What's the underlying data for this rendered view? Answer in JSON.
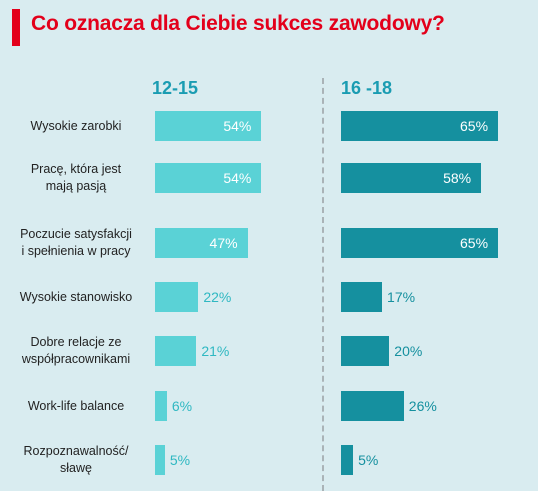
{
  "title": "Co oznacza dla Ciebie sukces zawodowy?",
  "chart_data": {
    "type": "bar",
    "orientation": "horizontal",
    "title": "Co oznacza dla Ciebie sukces zawodowy?",
    "categories": [
      "Wysokie zarobki",
      "Pracę, która jest mają pasją",
      "Poczucie satysfakcji i spełnienia w pracy",
      "Wysokie stanowisko",
      "Dobre relacje ze współpracownikami",
      "Work-life balance",
      "Rozpoznawalność/ sławę"
    ],
    "category_lines": [
      [
        "Wysokie zarobki"
      ],
      [
        "Pracę, która jest",
        "mają pasją"
      ],
      [
        "Poczucie satysfakcji",
        "i spełnienia w pracy"
      ],
      [
        "Wysokie stanowisko"
      ],
      [
        "Dobre relacje ze",
        "współpracownikami"
      ],
      [
        "Work-life balance"
      ],
      [
        "Rozpoznawalność/",
        "sławę"
      ]
    ],
    "series": [
      {
        "name": "12-15",
        "values": [
          54,
          54,
          47,
          22,
          21,
          6,
          5
        ],
        "color": "#5ad2d6"
      },
      {
        "name": "16 -18",
        "values": [
          65,
          58,
          65,
          17,
          20,
          26,
          5
        ],
        "color": "#15909f"
      }
    ],
    "value_suffix": "%",
    "xlim": [
      0,
      65
    ],
    "grid": false,
    "legend": "group headers above columns"
  },
  "colors": {
    "accent": "#e3001b",
    "header": "#1a9cb2",
    "series_young": "#5ad2d6",
    "series_old": "#15909f",
    "background": "#d9ecf0"
  }
}
